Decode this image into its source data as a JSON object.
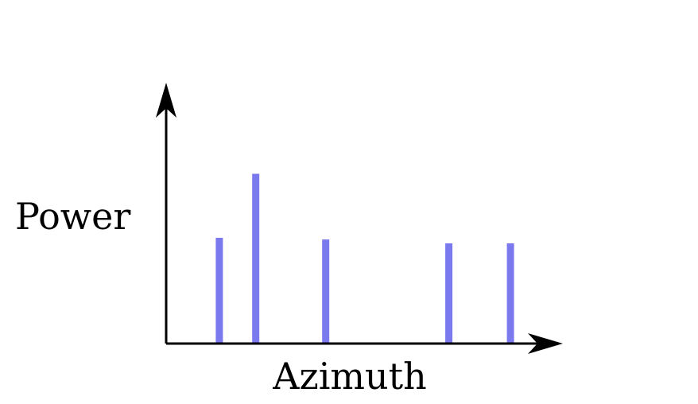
{
  "chart_data": {
    "type": "bar",
    "xlabel": "Azimuth",
    "ylabel": "Power",
    "title": "",
    "x": [
      0.95,
      1.6,
      2.85,
      5.05,
      6.15
    ],
    "values": [
      1.9,
      3.05,
      1.87,
      1.8,
      1.8
    ],
    "xlim": [
      0,
      7.1
    ],
    "ylim": [
      0,
      4.7
    ],
    "bar_color": "#7b79ee",
    "axis_color": "#000000",
    "grid": false,
    "legend": "none",
    "ticks": false
  }
}
